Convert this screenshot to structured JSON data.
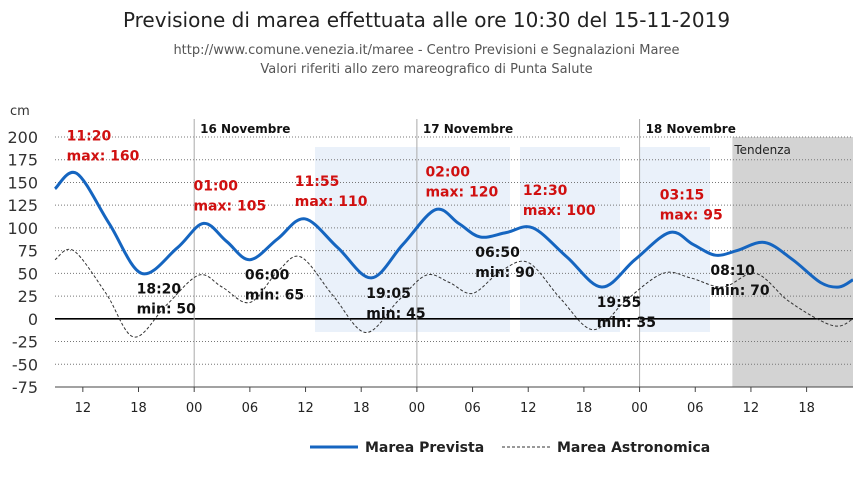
{
  "header": {
    "title": "Previsione di marea effettuata alle ore 10:30 del 15-11-2019",
    "source_line": "http://www.comune.venezia.it/maree - Centro Previsioni e Segnalazioni Maree",
    "reference_line": "Valori riferiti allo zero mareografico di Punta Salute"
  },
  "chart_data": {
    "type": "line",
    "ylabel": "cm",
    "ylim": [
      -75,
      200
    ],
    "yticks": [
      200,
      175,
      150,
      125,
      100,
      75,
      50,
      25,
      0,
      -25,
      -50,
      -75
    ],
    "xlim": [
      "2019-11-15 09:00",
      "2019-11-18 23:00"
    ],
    "xtick_labels": [
      "12",
      "18",
      "00",
      "06",
      "12",
      "18",
      "00",
      "06",
      "12",
      "18",
      "00",
      "06",
      "12",
      "18"
    ],
    "day_labels": [
      "16 Novembre",
      "17 Novembre",
      "18 Novembre"
    ],
    "trend_label": "Tendenza",
    "trend_start": "2019-11-18 10:00",
    "grid": true,
    "legend_position": "bottom",
    "colors": {
      "forecast": "#1565c0",
      "astronomical": "#333333",
      "max_label": "#d01010",
      "min_label": "#111111",
      "trend_band": "#d3d3d3"
    },
    "series": [
      {
        "name": "Marea Prevista",
        "style": "solid",
        "points": [
          [
            "2019-11-15 09:00",
            143
          ],
          [
            "2019-11-15 11:20",
            160
          ],
          [
            "2019-11-15 14:50",
            105
          ],
          [
            "2019-11-15 18:20",
            50
          ],
          [
            "2019-11-15 22:10",
            78
          ],
          [
            "2019-11-16 01:00",
            105
          ],
          [
            "2019-11-16 03:30",
            85
          ],
          [
            "2019-11-16 06:00",
            65
          ],
          [
            "2019-11-16 09:00",
            88
          ],
          [
            "2019-11-16 11:55",
            110
          ],
          [
            "2019-11-16 15:30",
            78
          ],
          [
            "2019-11-16 19:05",
            45
          ],
          [
            "2019-11-16 22:30",
            82
          ],
          [
            "2019-11-17 02:00",
            120
          ],
          [
            "2019-11-17 04:30",
            105
          ],
          [
            "2019-11-17 06:50",
            90
          ],
          [
            "2019-11-17 09:40",
            95
          ],
          [
            "2019-11-17 12:30",
            100
          ],
          [
            "2019-11-17 16:10",
            68
          ],
          [
            "2019-11-17 19:55",
            35
          ],
          [
            "2019-11-17 23:30",
            65
          ],
          [
            "2019-11-18 03:15",
            95
          ],
          [
            "2019-11-18 05:45",
            82
          ],
          [
            "2019-11-18 08:10",
            70
          ],
          [
            "2019-11-18 10:30",
            75
          ],
          [
            "2019-11-18 13:30",
            84
          ],
          [
            "2019-11-18 16:30",
            65
          ],
          [
            "2019-11-18 19:30",
            40
          ],
          [
            "2019-11-18 21:30",
            35
          ],
          [
            "2019-11-18 23:00",
            43
          ]
        ]
      },
      {
        "name": "Marea Astronomica",
        "style": "dashed",
        "points": [
          [
            "2019-11-15 09:00",
            65
          ],
          [
            "2019-11-15 11:00",
            75
          ],
          [
            "2019-11-15 14:30",
            28
          ],
          [
            "2019-11-15 17:30",
            -20
          ],
          [
            "2019-11-15 21:00",
            15
          ],
          [
            "2019-11-16 00:30",
            48
          ],
          [
            "2019-11-16 03:00",
            35
          ],
          [
            "2019-11-16 06:00",
            18
          ],
          [
            "2019-11-16 09:00",
            52
          ],
          [
            "2019-11-16 11:30",
            68
          ],
          [
            "2019-11-16 15:00",
            25
          ],
          [
            "2019-11-16 18:30",
            -15
          ],
          [
            "2019-11-16 22:00",
            20
          ],
          [
            "2019-11-17 01:00",
            48
          ],
          [
            "2019-11-17 03:30",
            40
          ],
          [
            "2019-11-17 06:00",
            28
          ],
          [
            "2019-11-17 09:00",
            52
          ],
          [
            "2019-11-17 12:00",
            62
          ],
          [
            "2019-11-17 15:30",
            22
          ],
          [
            "2019-11-17 19:00",
            -12
          ],
          [
            "2019-11-17 22:30",
            20
          ],
          [
            "2019-11-18 02:30",
            50
          ],
          [
            "2019-11-18 05:30",
            45
          ],
          [
            "2019-11-18 09:00",
            35
          ],
          [
            "2019-11-18 12:30",
            50
          ],
          [
            "2019-11-18 16:00",
            20
          ],
          [
            "2019-11-18 19:30",
            -2
          ],
          [
            "2019-11-18 21:30",
            -8
          ],
          [
            "2019-11-18 23:00",
            0
          ]
        ]
      }
    ],
    "annotations": [
      {
        "kind": "max",
        "time": "11:20",
        "label": "max: 160",
        "at": "2019-11-15 11:20",
        "value": 160
      },
      {
        "kind": "min",
        "time": "18:20",
        "label": "min: 50",
        "at": "2019-11-15 18:20",
        "value": 50
      },
      {
        "kind": "max",
        "time": "01:00",
        "label": "max: 105",
        "at": "2019-11-16 01:00",
        "value": 105
      },
      {
        "kind": "min",
        "time": "06:00",
        "label": "min: 65",
        "at": "2019-11-16 06:00",
        "value": 65
      },
      {
        "kind": "max",
        "time": "11:55",
        "label": "max: 110",
        "at": "2019-11-16 11:55",
        "value": 110
      },
      {
        "kind": "min",
        "time": "19:05",
        "label": "min: 45",
        "at": "2019-11-16 19:05",
        "value": 45
      },
      {
        "kind": "max",
        "time": "02:00",
        "label": "max: 120",
        "at": "2019-11-17 02:00",
        "value": 120
      },
      {
        "kind": "min",
        "time": "06:50",
        "label": "min: 90",
        "at": "2019-11-17 06:50",
        "value": 90
      },
      {
        "kind": "max",
        "time": "12:30",
        "label": "max: 100",
        "at": "2019-11-17 12:30",
        "value": 100
      },
      {
        "kind": "min",
        "time": "19:55",
        "label": "min: 35",
        "at": "2019-11-17 19:55",
        "value": 35
      },
      {
        "kind": "max",
        "time": "03:15",
        "label": "max: 95",
        "at": "2019-11-18 03:15",
        "value": 95
      },
      {
        "kind": "min",
        "time": "08:10",
        "label": "min: 70",
        "at": "2019-11-18 08:10",
        "value": 70
      }
    ]
  }
}
